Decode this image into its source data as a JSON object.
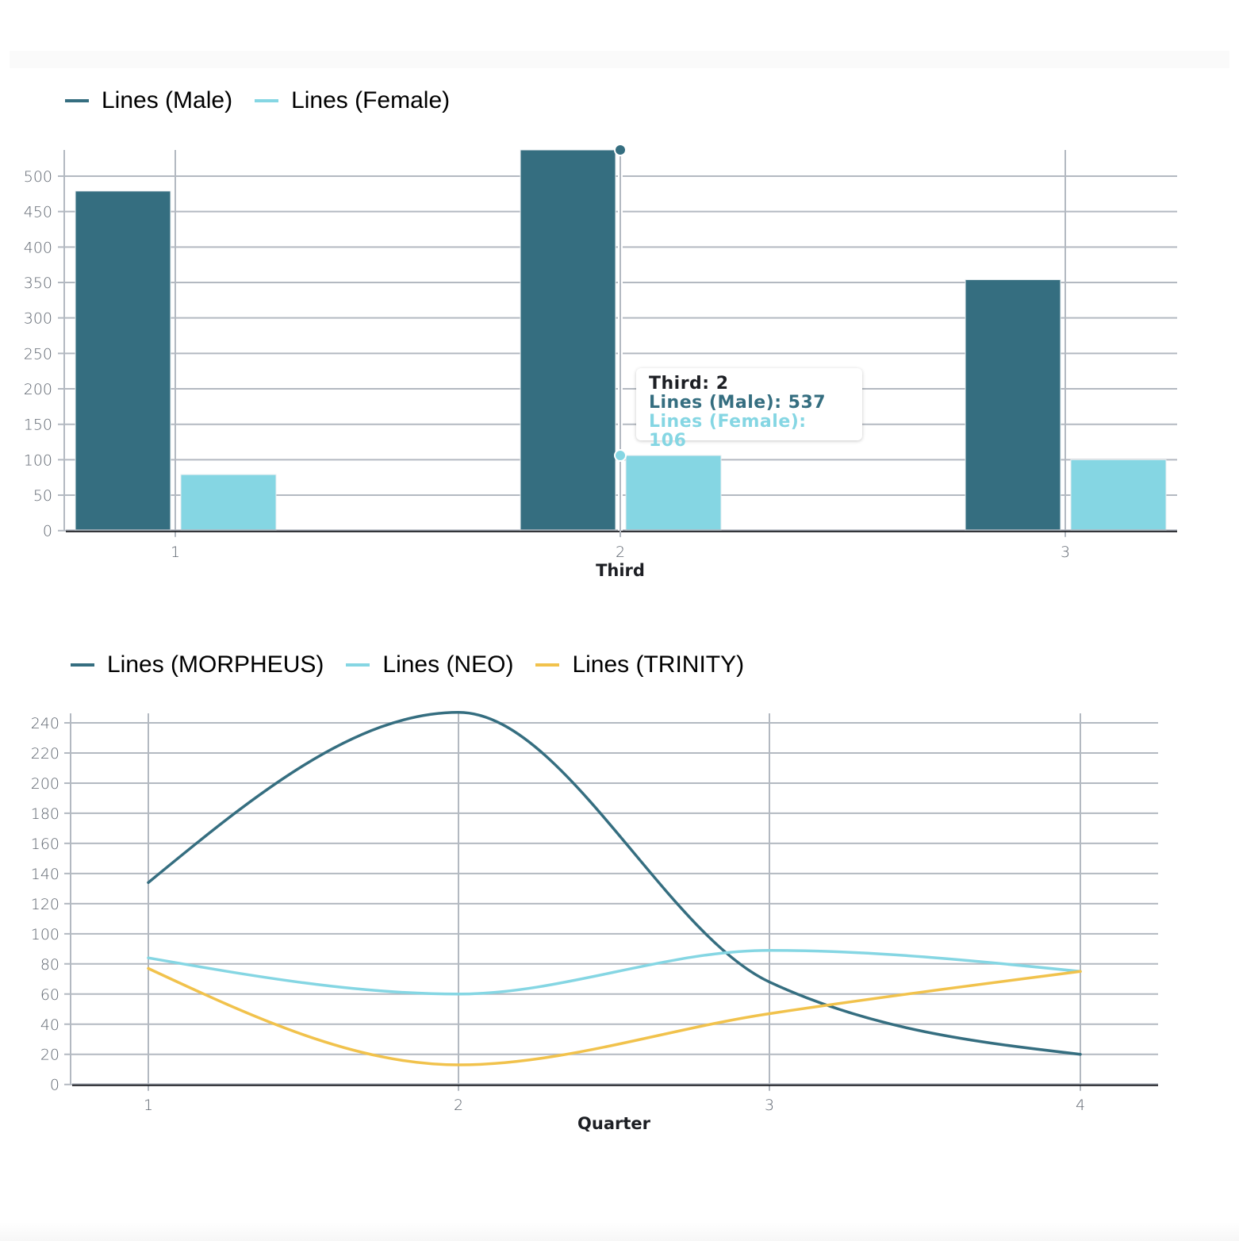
{
  "colors": {
    "male": "#356e80",
    "female": "#85d6e3",
    "morpheus": "#356e80",
    "neo": "#85d6e3",
    "trinity": "#f1c24c",
    "grid": "#b3b9c1",
    "axis": "#1d1f24"
  },
  "legend1": {
    "items": [
      {
        "label": "Lines (Male)",
        "color": "#356e80"
      },
      {
        "label": "Lines (Female)",
        "color": "#85d6e3"
      }
    ]
  },
  "legend2": {
    "items": [
      {
        "label": "Lines (MORPHEUS)",
        "color": "#356e80"
      },
      {
        "label": "Lines (NEO)",
        "color": "#85d6e3"
      },
      {
        "label": "Lines (TRINITY)",
        "color": "#f1c24c"
      }
    ]
  },
  "tooltip": {
    "title": "Third: 2",
    "male": "Lines (Male): 537",
    "female": "Lines (Female): 106"
  },
  "chart_data": [
    {
      "type": "bar",
      "title": "",
      "xlabel": "Third",
      "ylabel": "",
      "categories": [
        "1",
        "2",
        "3"
      ],
      "series": [
        {
          "name": "Lines (Male)",
          "values": [
            479,
            537,
            354
          ]
        },
        {
          "name": "Lines (Female)",
          "values": [
            79,
            106,
            100
          ]
        }
      ],
      "yticks": [
        0,
        50,
        100,
        150,
        200,
        250,
        300,
        350,
        400,
        450,
        500
      ],
      "ylim": [
        0,
        537
      ],
      "grid": true,
      "legend_position": "top-left",
      "hovered_category": "2"
    },
    {
      "type": "line",
      "title": "",
      "xlabel": "Quarter",
      "ylabel": "",
      "x": [
        "1",
        "2",
        "3",
        "4"
      ],
      "series": [
        {
          "name": "Lines (MORPHEUS)",
          "values": [
            134,
            247,
            68,
            20
          ]
        },
        {
          "name": "Lines (NEO)",
          "values": [
            84,
            60,
            89,
            75
          ]
        },
        {
          "name": "Lines (TRINITY)",
          "values": [
            77,
            13,
            47,
            75
          ]
        }
      ],
      "yticks": [
        0,
        20,
        40,
        60,
        80,
        100,
        120,
        140,
        160,
        180,
        200,
        220,
        240
      ],
      "ylim": [
        0,
        247
      ],
      "grid": true,
      "legend_position": "top-left"
    }
  ]
}
